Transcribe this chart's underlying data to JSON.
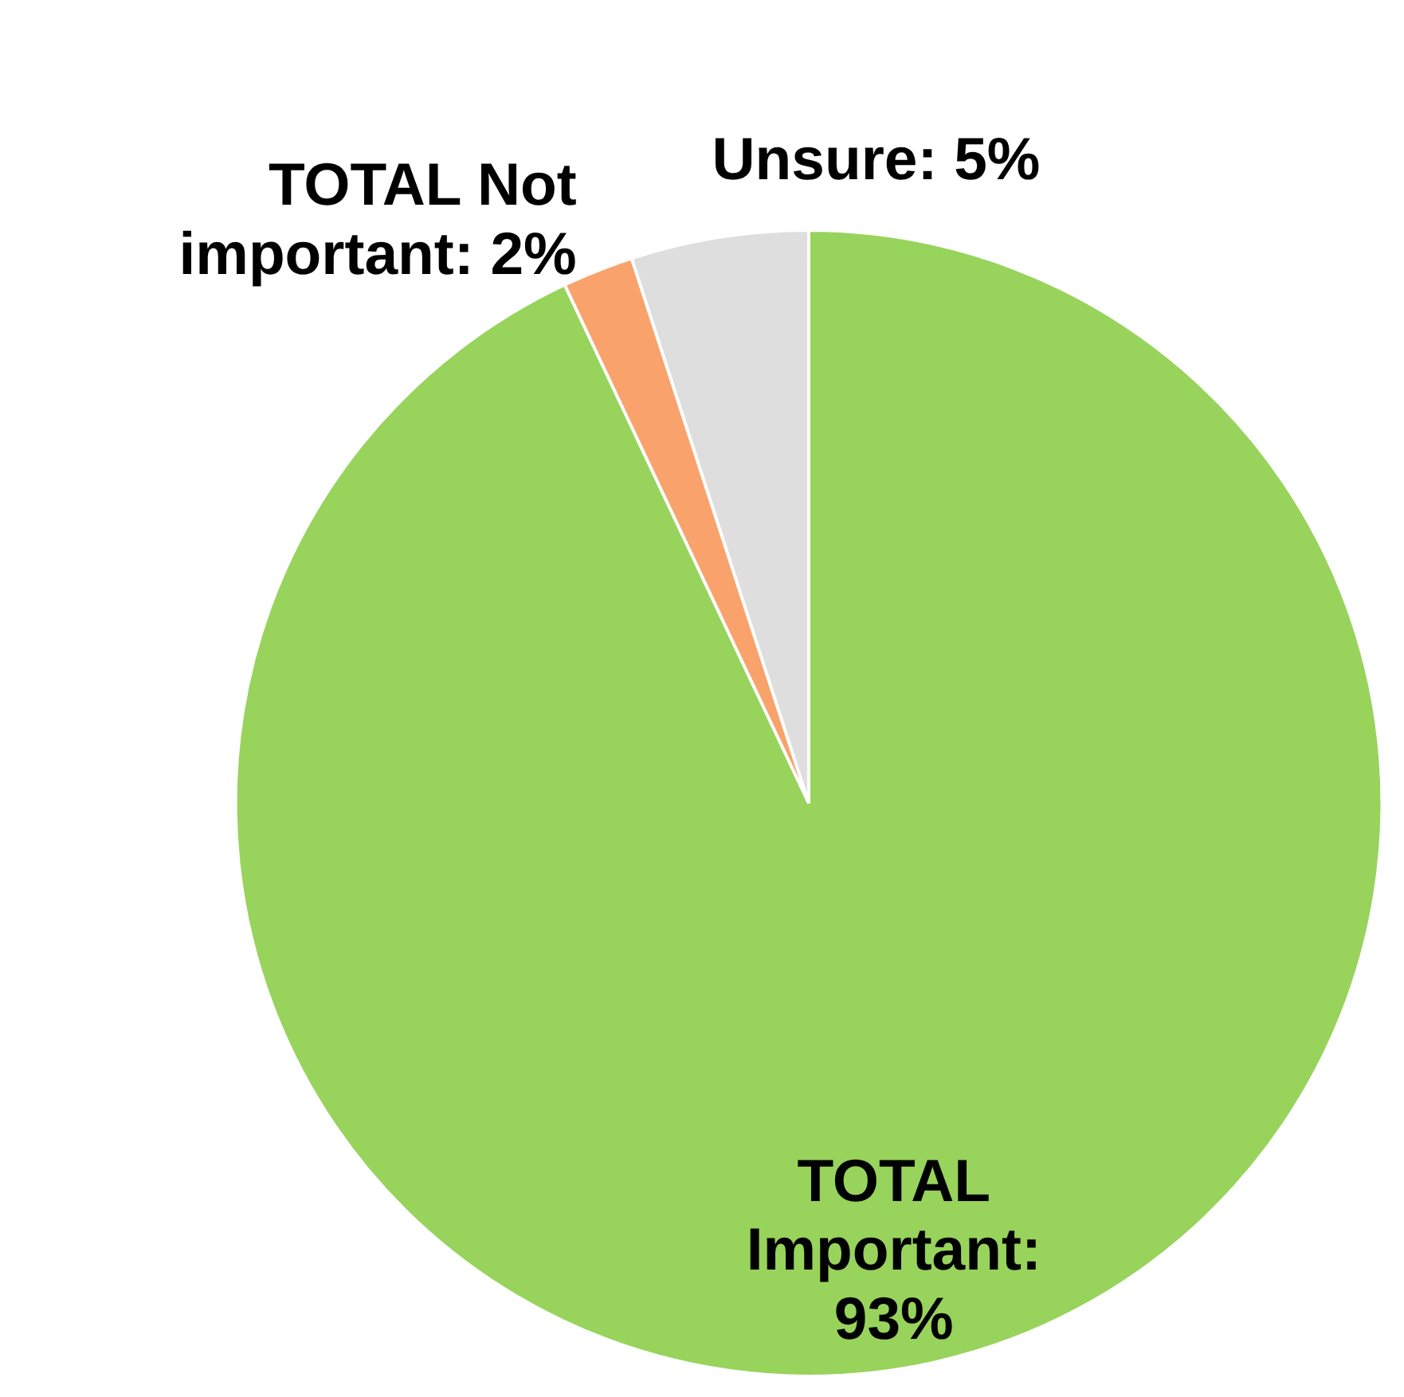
{
  "chart_data": {
    "type": "pie",
    "categories": [
      "TOTAL Important: 93%",
      "TOTAL Not important: 2%",
      "Unsure: 5%"
    ],
    "values": [
      93,
      2,
      5
    ],
    "colors": [
      "#98d35c",
      "#f9a26c",
      "#dedede"
    ],
    "legend": false
  }
}
